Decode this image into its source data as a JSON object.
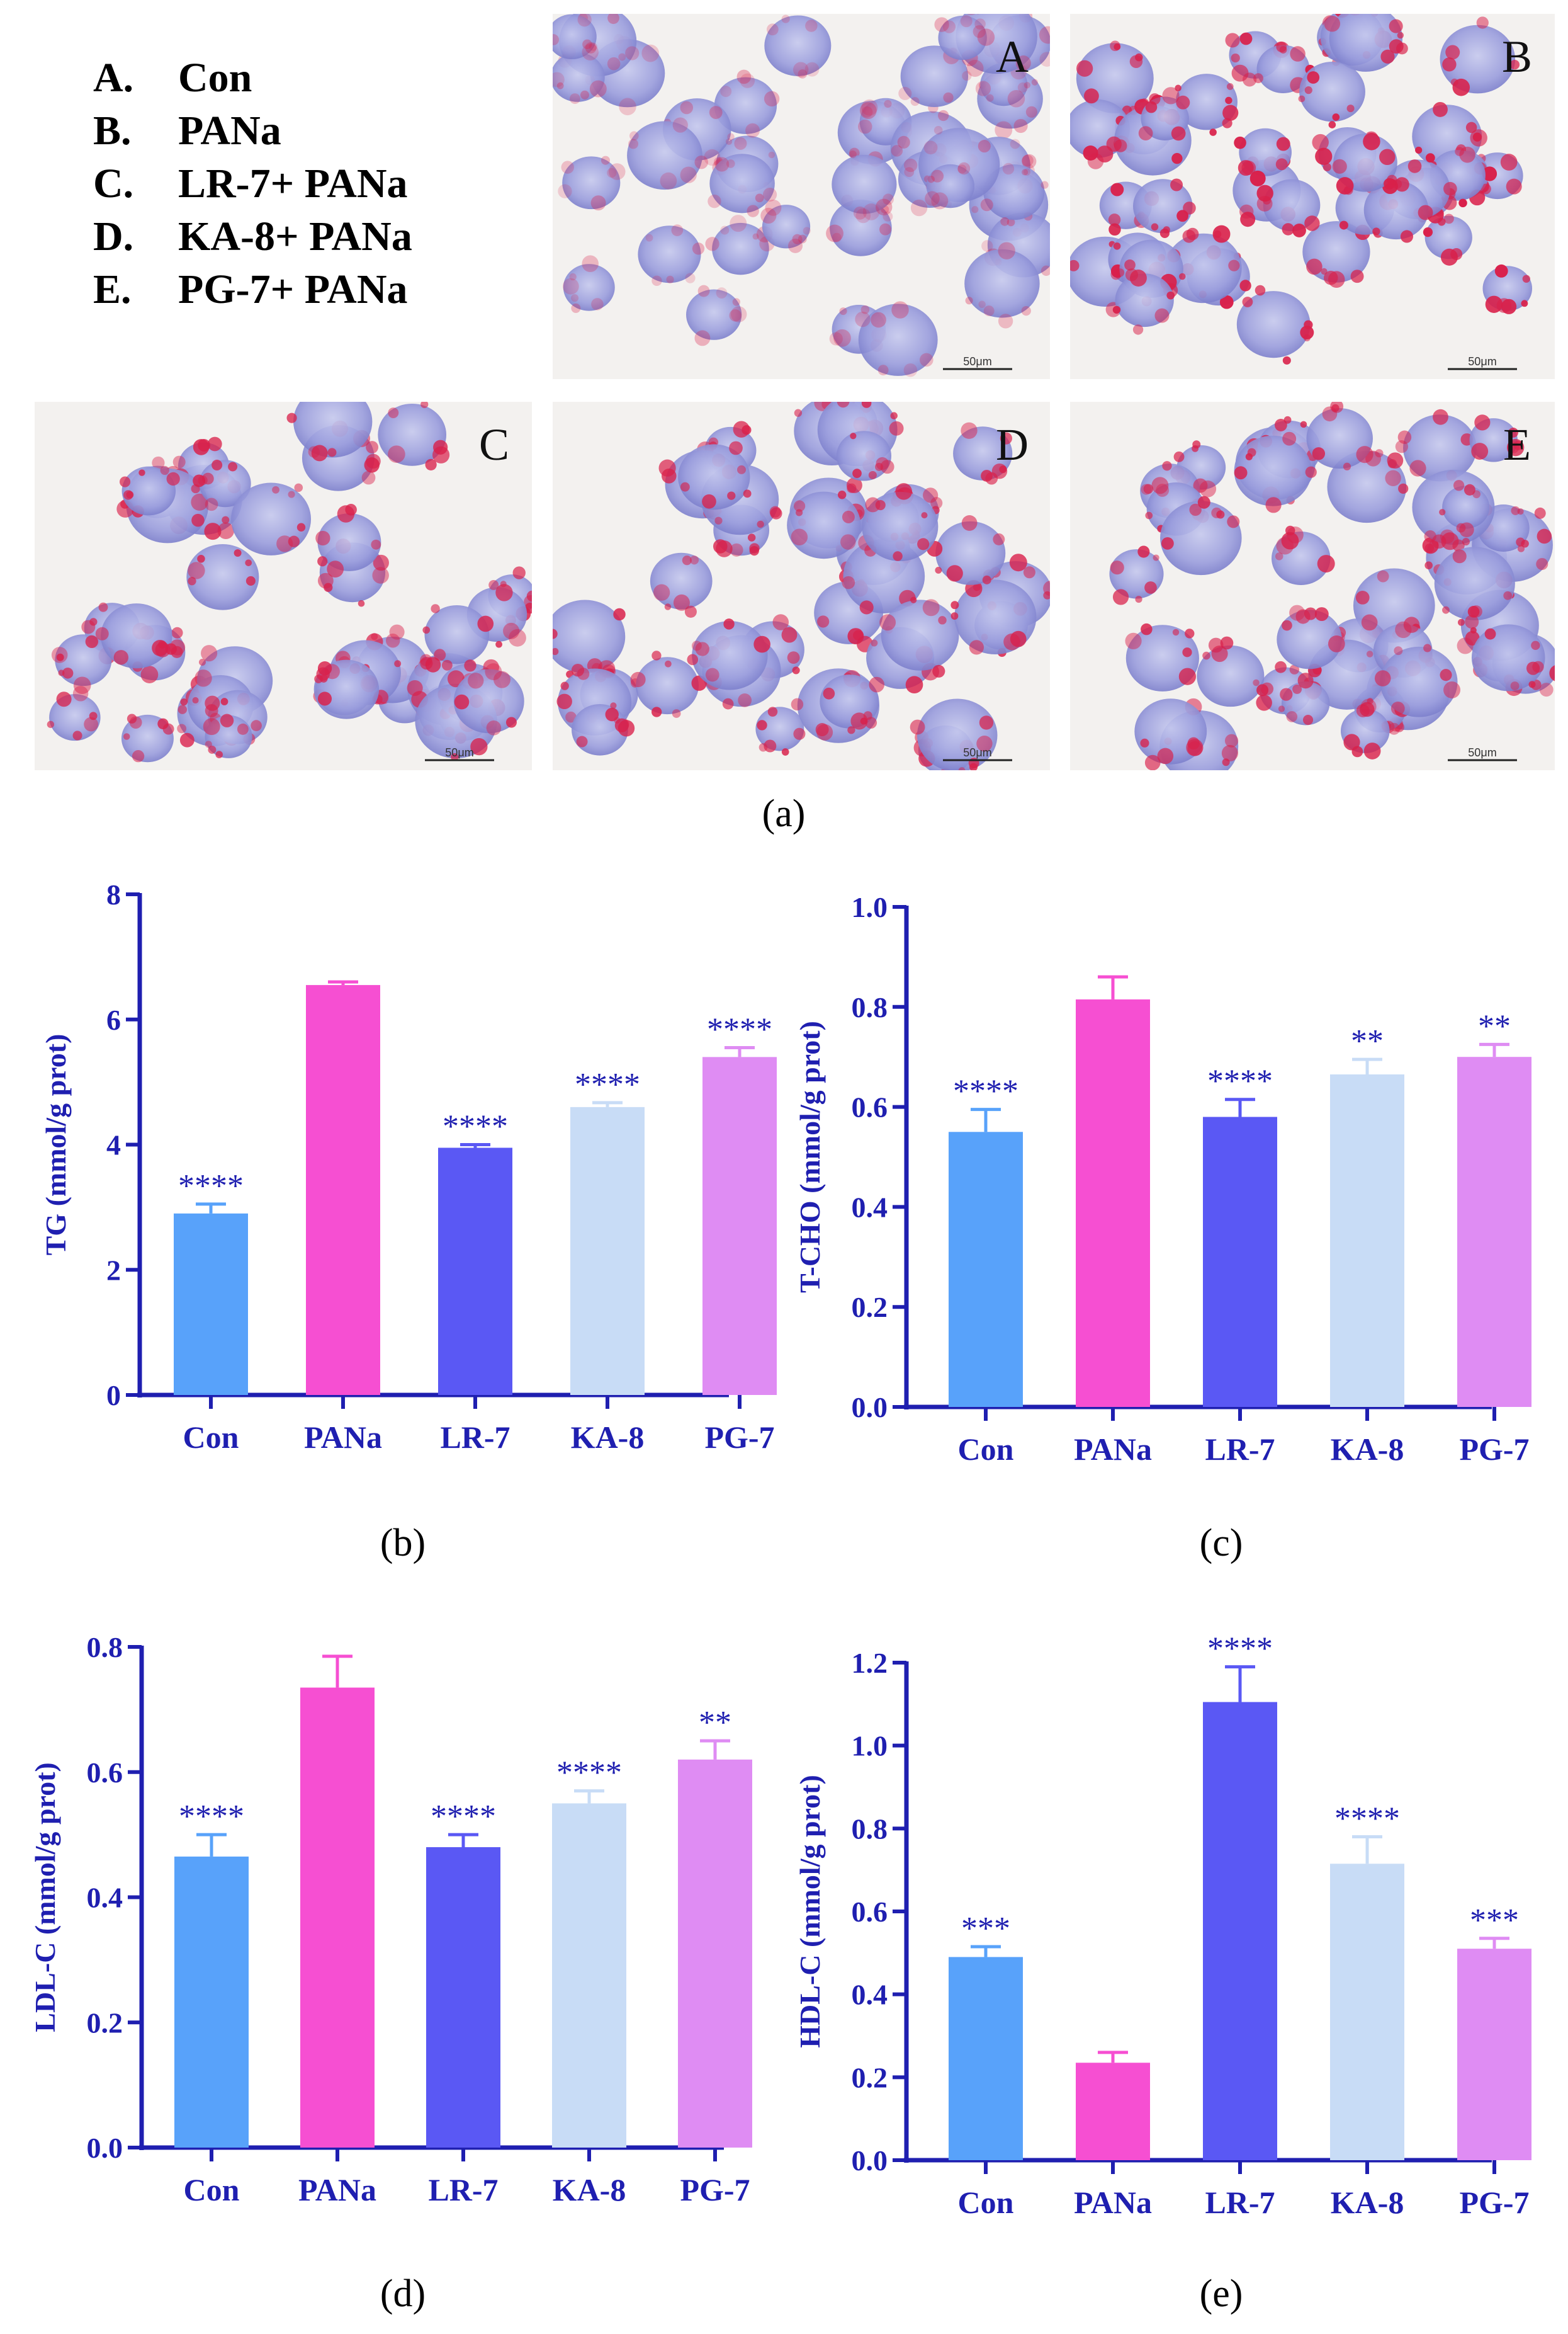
{
  "legend": [
    {
      "key": "A.",
      "label": "Con"
    },
    {
      "key": "B.",
      "label": "PANa"
    },
    {
      "key": "C.",
      "label": "LR-7+ PANa"
    },
    {
      "key": "D.",
      "label": "KA-8+ PANa"
    },
    {
      "key": "E.",
      "label": "PG-7+ PANa"
    }
  ],
  "micrographs": [
    {
      "letter": "A",
      "scale": "50μm",
      "stain": "light"
    },
    {
      "letter": "B",
      "scale": "50μm",
      "stain": "heavy"
    },
    {
      "letter": "C",
      "scale": "50μm",
      "stain": "medium"
    },
    {
      "letter": "D",
      "scale": "50μm",
      "stain": "medium"
    },
    {
      "letter": "E",
      "scale": "50μm",
      "stain": "medium"
    }
  ],
  "panel_labels": {
    "a": "(a)",
    "b": "(b)",
    "c": "(c)",
    "d": "(d)",
    "e": "(e)"
  },
  "colors": {
    "axis": "#1f1fb0",
    "bars": [
      "#58a2fa",
      "#f64fd2",
      "#5a58f4",
      "#c8dcf6",
      "#df8cf3"
    ]
  },
  "chart_data": [
    {
      "id": "b",
      "type": "bar",
      "categories": [
        "Con",
        "PANa",
        "LR-7",
        "KA-8",
        "PG-7"
      ],
      "values": [
        2.9,
        6.55,
        3.95,
        4.6,
        5.4
      ],
      "errors": [
        0.15,
        0.05,
        0.05,
        0.07,
        0.15
      ],
      "significance": [
        "****",
        "",
        "****",
        "****",
        "****"
      ],
      "ylabel": "TG (mmol/g prot)",
      "ylim": [
        0,
        8
      ],
      "yticks": [
        "0",
        "2",
        "4",
        "6",
        "8"
      ]
    },
    {
      "id": "c",
      "type": "bar",
      "categories": [
        "Con",
        "PANa",
        "LR-7",
        "KA-8",
        "PG-7"
      ],
      "values": [
        0.55,
        0.815,
        0.58,
        0.665,
        0.7
      ],
      "errors": [
        0.045,
        0.045,
        0.035,
        0.03,
        0.025
      ],
      "significance": [
        "****",
        "",
        "****",
        "**",
        "**"
      ],
      "ylabel": "T-CHO (mmol/g prot)",
      "ylim": [
        0,
        1.0
      ],
      "yticks": [
        "0.0",
        "0.2",
        "0.4",
        "0.6",
        "0.8",
        "1.0"
      ]
    },
    {
      "id": "d",
      "type": "bar",
      "categories": [
        "Con",
        "PANa",
        "LR-7",
        "KA-8",
        "PG-7"
      ],
      "values": [
        0.465,
        0.735,
        0.48,
        0.55,
        0.62
      ],
      "errors": [
        0.035,
        0.05,
        0.02,
        0.02,
        0.03
      ],
      "significance": [
        "****",
        "",
        "****",
        "****",
        "**"
      ],
      "ylabel": "LDL-C (mmol/g prot)",
      "ylim": [
        0,
        0.8
      ],
      "yticks": [
        "0.0",
        "0.2",
        "0.4",
        "0.6",
        "0.8"
      ]
    },
    {
      "id": "e",
      "type": "bar",
      "categories": [
        "Con",
        "PANa",
        "LR-7",
        "KA-8",
        "PG-7"
      ],
      "values": [
        0.49,
        0.235,
        1.105,
        0.715,
        0.51
      ],
      "errors": [
        0.025,
        0.025,
        0.085,
        0.065,
        0.025
      ],
      "significance": [
        "***",
        "",
        "****",
        "****",
        "***"
      ],
      "ylabel": "HDL-C (mmol/g prot)",
      "ylim": [
        0,
        1.2
      ],
      "yticks": [
        "0.0",
        "0.2",
        "0.4",
        "0.6",
        "0.8",
        "1.0",
        "1.2"
      ]
    }
  ]
}
